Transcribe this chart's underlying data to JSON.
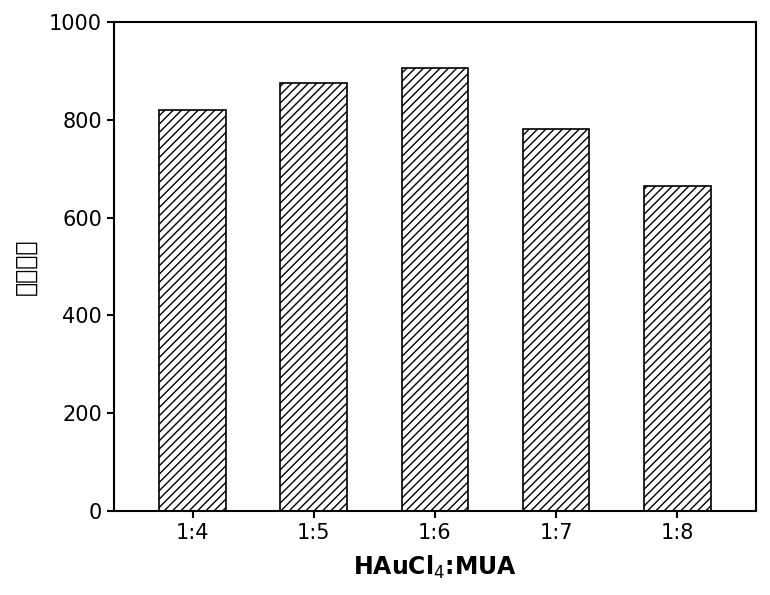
{
  "categories": [
    "1:4",
    "1:5",
    "1:6",
    "1:7",
    "1:8"
  ],
  "values": [
    820,
    875,
    905,
    780,
    665
  ],
  "bar_color": "white",
  "bar_edgecolor": "black",
  "hatch": "////",
  "title": "",
  "xlabel": "HAuCl$_4$:MUA",
  "ylabel": "荪光强度",
  "ylim": [
    0,
    1000
  ],
  "yticks": [
    0,
    200,
    400,
    600,
    800,
    1000
  ],
  "bar_width": 0.55,
  "xlabel_fontsize": 17,
  "ylabel_fontsize": 17,
  "tick_fontsize": 15,
  "figure_width": 7.7,
  "figure_height": 5.95,
  "dpi": 100
}
